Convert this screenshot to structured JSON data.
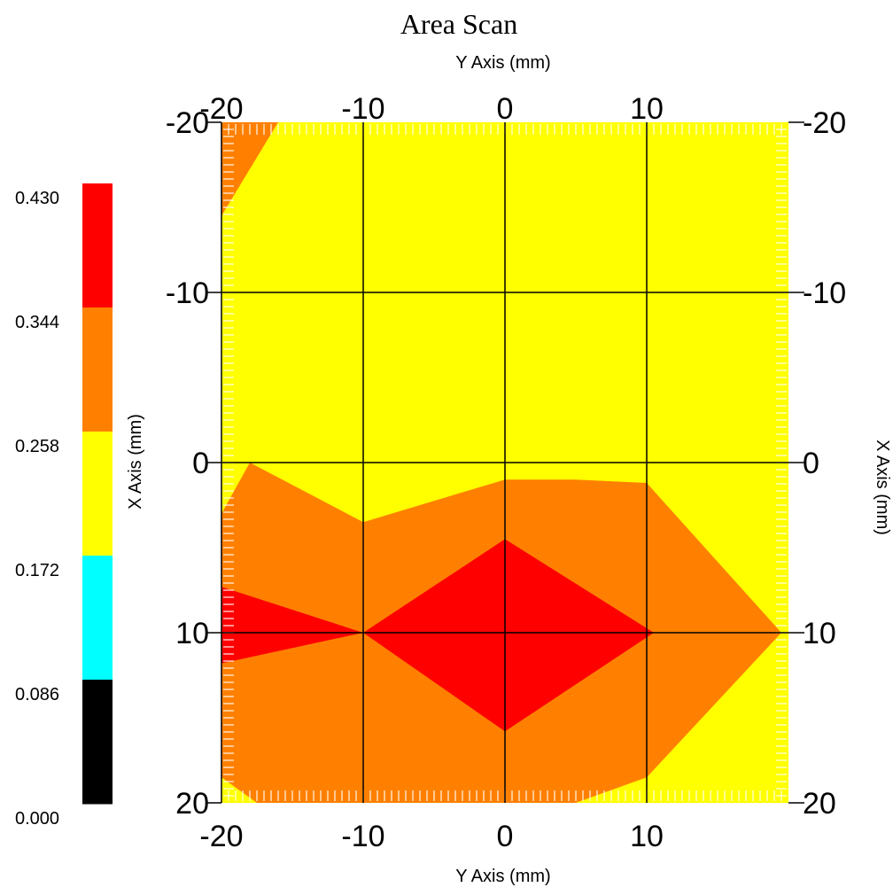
{
  "chart_data": {
    "type": "heatmap",
    "subtype": "filled-contour",
    "title": "Area Scan",
    "x_axis": {
      "label": "Y Axis (mm)",
      "range": [
        -20,
        20
      ],
      "ticks": [
        -20,
        -10,
        0,
        10
      ],
      "ticks_bottom": [
        -20,
        -10,
        0,
        10
      ]
    },
    "y_axis": {
      "label": "X Axis (mm)",
      "range": [
        -20,
        20
      ],
      "ticks": [
        -20,
        -10,
        0,
        10,
        20
      ],
      "direction": "down"
    },
    "grid": true,
    "colorbar": {
      "placement": "left",
      "labels": [
        "0.430",
        "0.344",
        "0.258",
        "0.172",
        "0.086",
        "0.000"
      ],
      "levels": [
        0.0,
        0.086,
        0.172,
        0.258,
        0.344,
        0.43
      ],
      "colors": [
        "#000000",
        "#00FFFF",
        "#FFFF00",
        "#FF8000",
        "#FF0000"
      ]
    },
    "background_color": "#FFFF00",
    "regions": [
      {
        "color": "#FF8000",
        "points": [
          [
            -20,
            -20
          ],
          [
            -16,
            -20
          ],
          [
            -20,
            -14.5
          ]
        ]
      },
      {
        "color": "#FF8000",
        "points": [
          [
            -20,
            3
          ],
          [
            -18,
            0
          ],
          [
            -10,
            3.5
          ],
          [
            0,
            1
          ],
          [
            5,
            1
          ],
          [
            10,
            1.2
          ],
          [
            19.5,
            10
          ],
          [
            10,
            18.5
          ],
          [
            5,
            20
          ],
          [
            -17.5,
            20
          ],
          [
            -20,
            18.5
          ]
        ]
      },
      {
        "color": "#FF0000",
        "points": [
          [
            -20,
            7.3
          ],
          [
            -10,
            10
          ],
          [
            0,
            4.5
          ],
          [
            10.5,
            10
          ],
          [
            0,
            15.8
          ],
          [
            -10,
            10
          ],
          [
            -20,
            11.8
          ]
        ]
      }
    ]
  }
}
